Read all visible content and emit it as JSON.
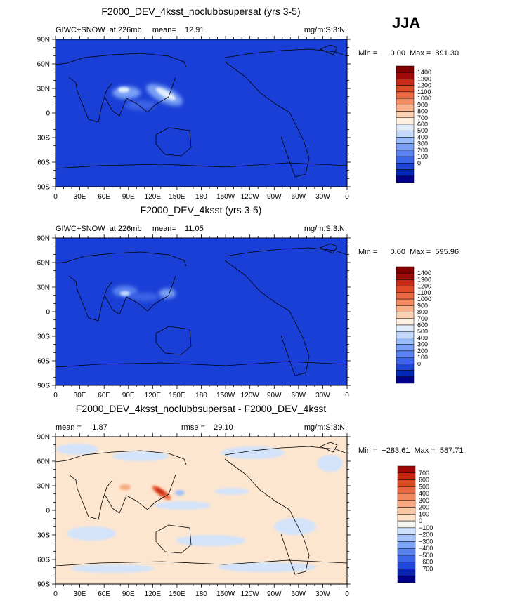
{
  "season": "JJA",
  "axes": {
    "lon_ticks": [
      "0",
      "30E",
      "60E",
      "90E",
      "120E",
      "150E",
      "180",
      "150W",
      "120W",
      "90W",
      "60W",
      "30W",
      "0"
    ],
    "lat_ticks": [
      "90N",
      "60N",
      "30N",
      "0",
      "30S",
      "60S",
      "90S"
    ]
  },
  "colors": {
    "seq_scale": [
      "#00008b",
      "#0028b4",
      "#1e46d7",
      "#3c64e6",
      "#5a82f0",
      "#7aa0f5",
      "#9bbefa",
      "#c3dafc",
      "#e1edfd",
      "#fff0e1",
      "#fcd2b4",
      "#f7b08a",
      "#f28c64",
      "#eb6a46",
      "#df4a28",
      "#c82a14",
      "#a00a0a",
      "#800000"
    ],
    "diff_scale": [
      "#00008b",
      "#0a23b4",
      "#1e46d7",
      "#3c64e6",
      "#5a82f0",
      "#7ea4f5",
      "#a5c3fa",
      "#cde0fc",
      "#f5f5f0",
      "#fde2c8",
      "#fbc8a5",
      "#f7aa82",
      "#f28860",
      "#ea6640",
      "#dc4a24",
      "#c42810",
      "#a00808"
    ],
    "ocean_fill": "#1a3fd6",
    "diff_fill": "#fde6d0",
    "diff_neg": "#d2e3fa",
    "coast": "#000000"
  },
  "chart_data": [
    {
      "type": "heatmap",
      "title": "F2000_DEV_4ksst_noclubbsupersat (yrs 3-5)",
      "left_label": "GIWC+SNOW  at 226mb     mean=    12.91",
      "units": "mg/m:S:3:N:",
      "stats": "Min =      0.00  Max =  891.30",
      "min": 0.0,
      "max": 891.3,
      "mean": 12.91,
      "variable": "GIWC+SNOW",
      "level_mb": 226,
      "xlim": [
        0,
        360
      ],
      "ylim": [
        -90,
        90
      ],
      "colorbar_levels": [
        "1400",
        "1300",
        "1200",
        "1100",
        "1000",
        "900",
        "800",
        "700",
        "600",
        "500",
        "400",
        "300",
        "200",
        "100",
        "0"
      ],
      "features": [
        {
          "lon": 125,
          "lat": 18,
          "value": 700,
          "name": "western-pacific-maximum"
        },
        {
          "lon": 85,
          "lat": 22,
          "value": 450,
          "name": "bay-of-bengal-maximum"
        },
        {
          "lon": 100,
          "lat": 10,
          "value": 250,
          "name": "southeast-asia-band"
        }
      ]
    },
    {
      "type": "heatmap",
      "title": "F2000_DEV_4ksst (yrs 3-5)",
      "left_label": "GIWC+SNOW  at 226mb     mean=    11.05",
      "units": "mg/m:S:3:N:",
      "stats": "Min =      0.00  Max =  595.96",
      "min": 0.0,
      "max": 595.96,
      "mean": 11.05,
      "variable": "GIWC+SNOW",
      "level_mb": 226,
      "xlim": [
        0,
        360
      ],
      "ylim": [
        -90,
        90
      ],
      "colorbar_levels": [
        "1400",
        "1300",
        "1200",
        "1100",
        "1000",
        "900",
        "800",
        "700",
        "600",
        "500",
        "400",
        "300",
        "200",
        "100",
        "0"
      ],
      "features": [
        {
          "lon": 85,
          "lat": 20,
          "value": 350,
          "name": "bay-of-bengal-maximum"
        },
        {
          "lon": 130,
          "lat": 22,
          "value": 300,
          "name": "western-pacific-maximum"
        }
      ]
    },
    {
      "type": "heatmap",
      "title": "F2000_DEV_4ksst_noclubbsupersat - F2000_DEV_4ksst",
      "left_label": "mean =     1.87",
      "center_label": "rmse =    29.10",
      "units": "mg/m:S:3:N:",
      "stats": "Min =  −283.61  Max =  587.71",
      "min": -283.61,
      "max": 587.71,
      "mean": 1.87,
      "rmse": 29.1,
      "xlim": [
        0,
        360
      ],
      "ylim": [
        -90,
        90
      ],
      "colorbar_levels": [
        "700",
        "600",
        "500",
        "400",
        "300",
        "200",
        "100",
        "0",
        "−100",
        "−200",
        "−300",
        "−400",
        "−500",
        "−600",
        "−700"
      ],
      "features": [
        {
          "lon": 120,
          "lat": 22,
          "value": 550,
          "name": "western-pacific-positive"
        },
        {
          "lon": 90,
          "lat": 20,
          "value": 150,
          "name": "bay-of-bengal-positive"
        }
      ]
    }
  ]
}
